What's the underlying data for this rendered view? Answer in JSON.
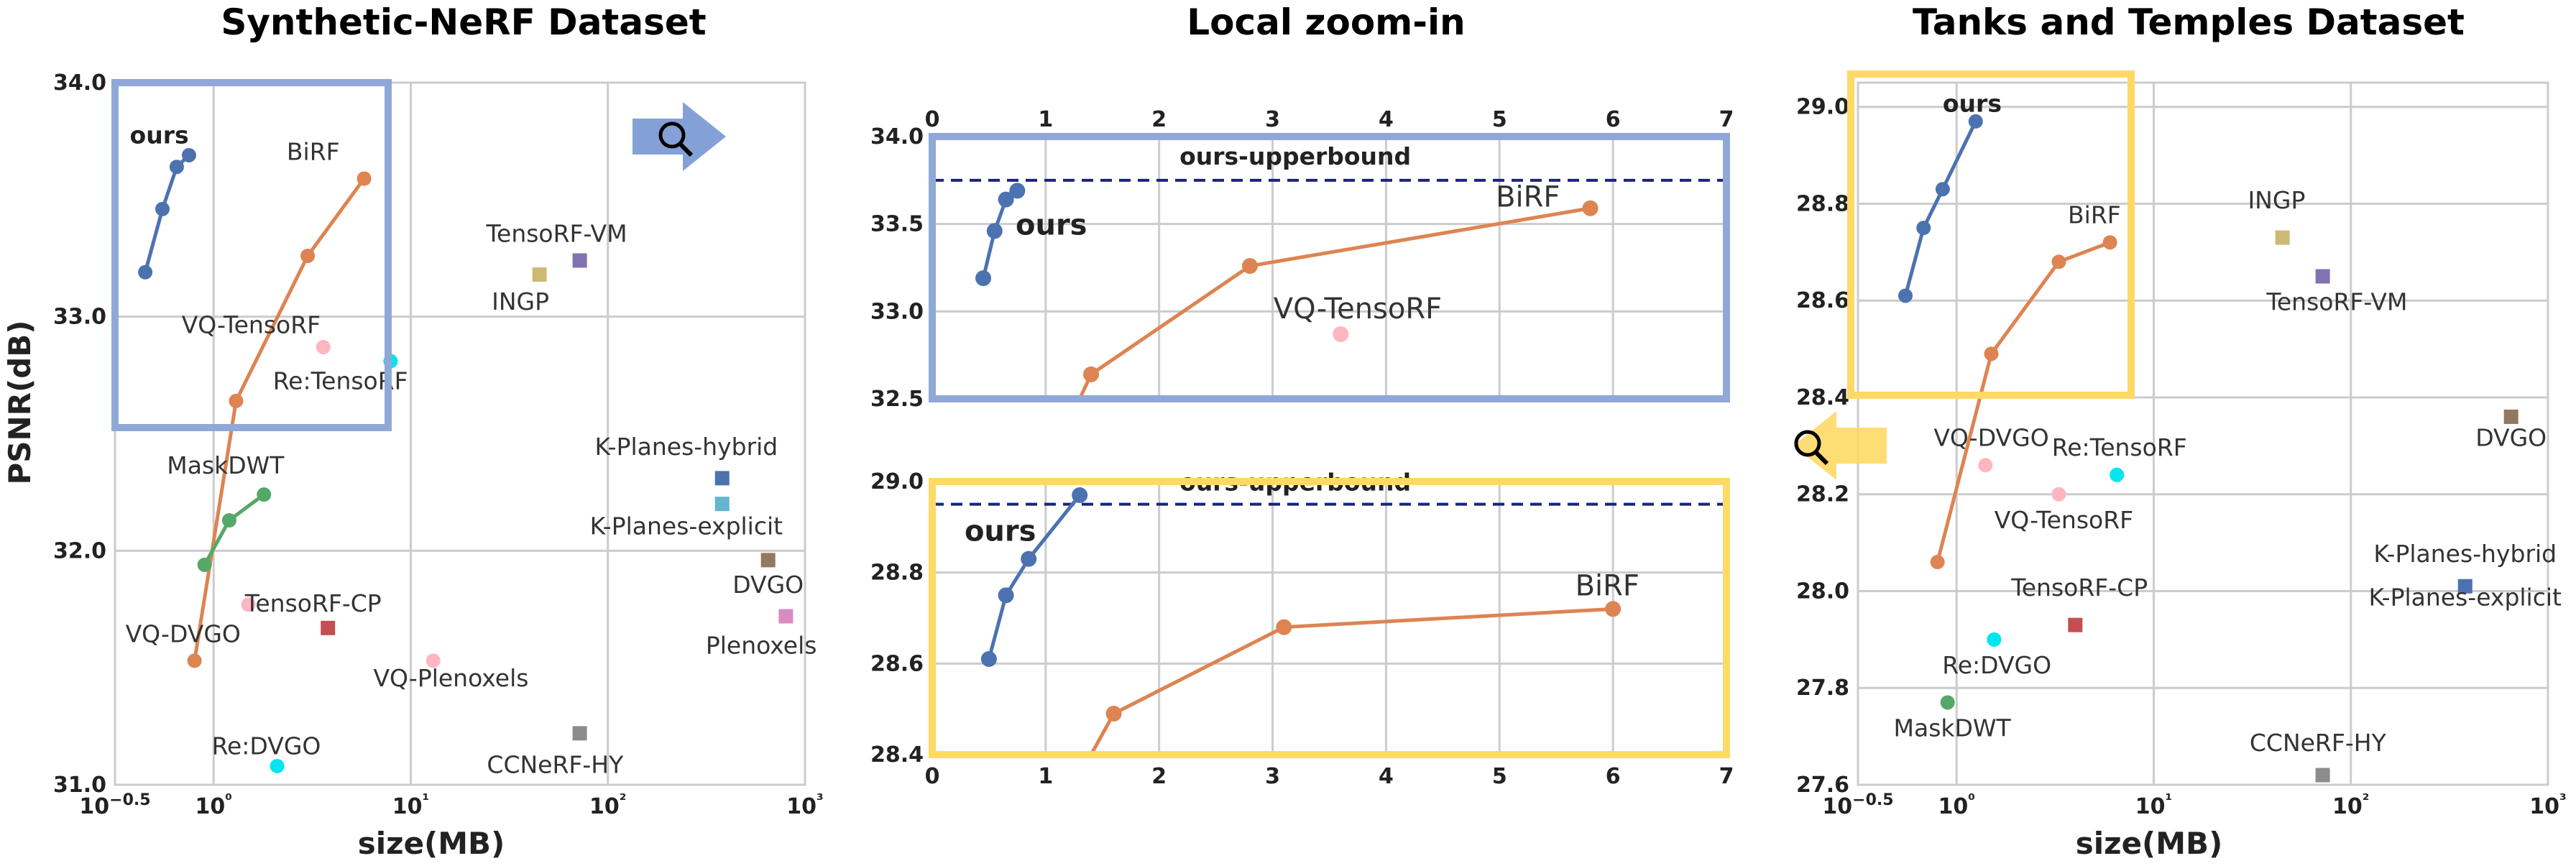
{
  "chart_data": [
    {
      "id": "synthetic",
      "type": "scatter",
      "title": "Synthetic-NeRF Dataset",
      "xlabel": "size(MB)",
      "ylabel": "PSNR(dB)",
      "xscale": "log",
      "xlim": [
        0.316,
        1000
      ],
      "ylim": [
        31.0,
        34.0
      ],
      "xticks": [
        {
          "v": 0.316,
          "t": "10−0.5"
        },
        {
          "v": 1,
          "t": "10⁰"
        },
        {
          "v": 10,
          "t": "10¹"
        },
        {
          "v": 100,
          "t": "10²"
        },
        {
          "v": 1000,
          "t": "10³"
        }
      ],
      "yticks": [
        {
          "v": 31.0,
          "t": "31.0"
        },
        {
          "v": 32.0,
          "t": "32.0"
        },
        {
          "v": 33.0,
          "t": "33.0"
        },
        {
          "v": 34.0,
          "t": "34.0"
        }
      ],
      "grid": true,
      "series": [
        {
          "name": "ours",
          "color": "#4c72b0",
          "line": true,
          "x": [
            0.45,
            0.55,
            0.65,
            0.75
          ],
          "y": [
            33.19,
            33.46,
            33.64,
            33.69
          ]
        },
        {
          "name": "BiRF",
          "color": "#dd8452",
          "line": true,
          "x": [
            0.8,
            1.3,
            3.0,
            5.8
          ],
          "y": [
            31.53,
            32.64,
            33.26,
            33.59
          ]
        },
        {
          "name": "MaskDWT",
          "color": "#55a868",
          "line": true,
          "x": [
            0.9,
            1.2,
            1.8
          ],
          "y": [
            31.94,
            32.13,
            32.24
          ]
        }
      ],
      "points": [
        {
          "name": "VQ-TensoRF",
          "x": 3.6,
          "y": 32.87,
          "color": "#ffb6c1",
          "shape": "circle"
        },
        {
          "name": "Re:TensoRF",
          "x": 7.9,
          "y": 32.81,
          "color": "#00e5ee",
          "shape": "circle"
        },
        {
          "name": "TensoRF-CP",
          "x": 1.5,
          "y": 31.77,
          "color": "#ffb6c1",
          "shape": "circle"
        },
        {
          "name": "VQ-Plenoxels",
          "x": 13,
          "y": 31.53,
          "color": "#ffb6c1",
          "shape": "circle"
        },
        {
          "name": "VQ-DVGO",
          "x": 3.8,
          "y": 31.67,
          "color": "#c44e52",
          "shape": "square"
        },
        {
          "name": "Re:DVGO",
          "x": 2.1,
          "y": 31.08,
          "color": "#00e5ee",
          "shape": "circle"
        },
        {
          "name": "INGP",
          "x": 45,
          "y": 33.18,
          "color": "#ccb974",
          "shape": "square"
        },
        {
          "name": "TensoRF-VM",
          "x": 72,
          "y": 33.24,
          "color": "#8172b2",
          "shape": "square"
        },
        {
          "name": "K-Planes-hybrid",
          "x": 380,
          "y": 32.31,
          "color": "#4c72b0",
          "shape": "square"
        },
        {
          "name": "K-Planes-explicit",
          "x": 380,
          "y": 32.2,
          "color": "#64b5cd",
          "shape": "square"
        },
        {
          "name": "DVGO",
          "x": 650,
          "y": 31.96,
          "color": "#937860",
          "shape": "square"
        },
        {
          "name": "Plenoxels",
          "x": 800,
          "y": 31.72,
          "color": "#da8bc3",
          "shape": "square"
        },
        {
          "name": "CCNeRF-HY",
          "x": 72,
          "y": 31.22,
          "color": "#8c8c8c",
          "shape": "square"
        }
      ]
    },
    {
      "id": "zoom",
      "type": "line",
      "title": "Local zoom-in",
      "xlim": [
        0,
        7
      ],
      "xticks": [
        "0",
        "1",
        "2",
        "3",
        "4",
        "5",
        "6",
        "7"
      ],
      "top": {
        "ylim": [
          32.5,
          34.0
        ],
        "yticks": [
          "32.5",
          "33.0",
          "33.5",
          "34.0"
        ],
        "upperbound": 33.75,
        "upperbound_label": "ours-upperbound",
        "series": [
          {
            "name": "ours",
            "color": "#4c72b0",
            "x": [
              0.45,
              0.55,
              0.65,
              0.75
            ],
            "y": [
              33.19,
              33.46,
              33.64,
              33.69
            ]
          },
          {
            "name": "BiRF",
            "color": "#dd8452",
            "x": [
              1.3,
              1.4,
              2.8,
              5.8
            ],
            "y": [
              32.5,
              32.64,
              33.26,
              33.59
            ]
          }
        ],
        "points": [
          {
            "name": "VQ-TensoRF",
            "x": 3.6,
            "y": 32.87,
            "color": "#ffb6c1"
          }
        ]
      },
      "bottom": {
        "ylim": [
          28.4,
          29.0
        ],
        "yticks": [
          "28.4",
          "28.6",
          "28.8",
          "29.0"
        ],
        "upperbound": 28.95,
        "upperbound_label": "ours-upperbound",
        "series": [
          {
            "name": "ours",
            "color": "#4c72b0",
            "x": [
              0.5,
              0.65,
              0.85,
              1.3
            ],
            "y": [
              28.61,
              28.75,
              28.83,
              28.97
            ]
          },
          {
            "name": "BiRF",
            "color": "#dd8452",
            "x": [
              1.4,
              1.6,
              3.1,
              6.0
            ],
            "y": [
              28.4,
              28.49,
              28.68,
              28.72
            ]
          }
        ]
      }
    },
    {
      "id": "tanks",
      "type": "scatter",
      "title": "Tanks and Temples Dataset",
      "xlabel": "size(MB)",
      "xscale": "log",
      "xlim": [
        0.316,
        1000
      ],
      "ylim": [
        27.6,
        29.05
      ],
      "xticks": [
        {
          "v": 0.316,
          "t": "10−0.5"
        },
        {
          "v": 1,
          "t": "10⁰"
        },
        {
          "v": 10,
          "t": "10¹"
        },
        {
          "v": 100,
          "t": "10²"
        },
        {
          "v": 1000,
          "t": "10³"
        }
      ],
      "yticks": [
        {
          "v": 27.6,
          "t": "27.6"
        },
        {
          "v": 27.8,
          "t": "27.8"
        },
        {
          "v": 28.0,
          "t": "28.0"
        },
        {
          "v": 28.2,
          "t": "28.2"
        },
        {
          "v": 28.4,
          "t": "28.4"
        },
        {
          "v": 28.6,
          "t": "28.6"
        },
        {
          "v": 28.8,
          "t": "28.8"
        },
        {
          "v": 29.0,
          "t": "29.0"
        }
      ],
      "grid": true,
      "series": [
        {
          "name": "ours",
          "color": "#4c72b0",
          "line": true,
          "x": [
            0.55,
            0.68,
            0.85,
            1.25
          ],
          "y": [
            28.61,
            28.75,
            28.83,
            28.97
          ]
        },
        {
          "name": "BiRF",
          "color": "#dd8452",
          "line": true,
          "x": [
            0.8,
            1.5,
            3.3,
            6.0
          ],
          "y": [
            28.06,
            28.49,
            28.68,
            28.72
          ]
        }
      ],
      "points": [
        {
          "name": "INGP",
          "x": 45,
          "y": 28.73,
          "color": "#ccb974",
          "shape": "square"
        },
        {
          "name": "TensoRF-VM",
          "x": 72,
          "y": 28.65,
          "color": "#8172b2",
          "shape": "square"
        },
        {
          "name": "DVGO",
          "x": 650,
          "y": 28.36,
          "color": "#937860",
          "shape": "square"
        },
        {
          "name": "VQ-DVGO",
          "x": 1.4,
          "y": 28.26,
          "color": "#ffb6c1",
          "shape": "circle"
        },
        {
          "name": "VQ-TensoRF",
          "x": 3.3,
          "y": 28.2,
          "color": "#ffb6c1",
          "shape": "circle"
        },
        {
          "name": "Re:TensoRF",
          "x": 6.5,
          "y": 28.24,
          "color": "#00e5ee",
          "shape": "circle"
        },
        {
          "name": "K-Planes-hybrid",
          "x": 380,
          "y": 28.01,
          "color": "#4c72b0",
          "shape": "square"
        },
        {
          "name": "TensoRF-CP",
          "x": 4.0,
          "y": 27.93,
          "color": "#c44e52",
          "shape": "square"
        },
        {
          "name": "Re:DVGO",
          "x": 1.55,
          "y": 27.9,
          "color": "#00e5ee",
          "shape": "circle"
        },
        {
          "name": "MaskDWT",
          "x": 0.9,
          "y": 27.77,
          "color": "#55a868",
          "shape": "circle"
        },
        {
          "name": "CCNeRF-HY",
          "x": 72,
          "y": 27.62,
          "color": "#8c8c8c",
          "shape": "square"
        }
      ]
    }
  ],
  "labels": {
    "synthetic": [
      {
        "text": "ours",
        "bold": true,
        "x": 0.53,
        "y": 33.74
      },
      {
        "text": "BiRF",
        "x": 3.2,
        "y": 33.67
      },
      {
        "text": "TensoRF-VM",
        "x": 55,
        "y": 33.32
      },
      {
        "text": "INGP",
        "x": 36,
        "y": 33.03
      },
      {
        "text": "VQ-TensoRF",
        "x": 1.55,
        "y": 32.93
      },
      {
        "text": "Re:TensoRF",
        "x": 4.4,
        "y": 32.69
      },
      {
        "text": "K-Planes-hybrid",
        "x": 250,
        "y": 32.41
      },
      {
        "text": "K-Planes-explicit",
        "x": 250,
        "y": 32.07
      },
      {
        "text": "MaskDWT",
        "x": 1.15,
        "y": 32.33
      },
      {
        "text": "DVGO",
        "x": 650,
        "y": 31.82
      },
      {
        "text": "TensoRF-CP",
        "x": 3.2,
        "y": 31.74
      },
      {
        "text": "VQ-DVGO",
        "x": 0.7,
        "y": 31.61
      },
      {
        "text": "Plenoxels",
        "x": 600,
        "y": 31.56
      },
      {
        "text": "VQ-Plenoxels",
        "x": 16,
        "y": 31.42
      },
      {
        "text": "Re:DVGO",
        "x": 1.85,
        "y": 31.13
      },
      {
        "text": "CCNeRF-HY",
        "x": 54,
        "y": 31.05
      }
    ],
    "zoom_top": [
      {
        "text": "ours-upperbound",
        "x": 3.2,
        "y": 33.84,
        "cls": "ub"
      },
      {
        "text": "ours",
        "x": 1.05,
        "y": 33.44,
        "cls": "lblbig"
      },
      {
        "text": "BiRF",
        "x": 5.25,
        "y": 33.6,
        "cls": "zl"
      },
      {
        "text": "VQ-TensoRF",
        "x": 3.75,
        "y": 32.96,
        "cls": "zl"
      }
    ],
    "zoom_bottom": [
      {
        "text": "ours-upperbound",
        "x": 3.2,
        "y": 28.98,
        "cls": "ub"
      },
      {
        "text": "ours",
        "x": 0.6,
        "y": 28.87,
        "cls": "lblbig"
      },
      {
        "text": "BiRF",
        "x": 5.95,
        "y": 28.75,
        "cls": "zl"
      }
    ],
    "tanks": [
      {
        "text": "ours",
        "x": 1.2,
        "y": 28.99,
        "bold": true
      },
      {
        "text": "BiRF",
        "x": 5.0,
        "y": 28.76
      },
      {
        "text": "INGP",
        "x": 42,
        "y": 28.79
      },
      {
        "text": "TensoRF-VM",
        "x": 85,
        "y": 28.58
      },
      {
        "text": "DVGO",
        "x": 650,
        "y": 28.3
      },
      {
        "text": "VQ-DVGO",
        "x": 1.5,
        "y": 28.3
      },
      {
        "text": "Re:TensoRF",
        "x": 6.7,
        "y": 28.28
      },
      {
        "text": "VQ-TensoRF",
        "x": 3.5,
        "y": 28.13
      },
      {
        "text": "K-Planes-hybrid",
        "x": 380,
        "y": 28.06
      },
      {
        "text": "K-Planes-explicit",
        "x": 380,
        "y": 27.97
      },
      {
        "text": "TensoRF-CP",
        "x": 4.2,
        "y": 27.99
      },
      {
        "text": "Re:DVGO",
        "x": 1.6,
        "y": 27.83
      },
      {
        "text": "MaskDWT",
        "x": 0.95,
        "y": 27.7
      },
      {
        "text": "CCNeRF-HY",
        "x": 68,
        "y": 27.67
      }
    ]
  },
  "zoom_boxes": {
    "blue": "#8fa8d8",
    "yellow": "#ffd966"
  },
  "icons": {
    "zoom_arrow_right": "magnifier-arrow-right-icon",
    "zoom_arrow_left": "magnifier-arrow-left-icon"
  },
  "colors": {
    "grid": "#cccccc",
    "upperbound": "#1a237e"
  }
}
